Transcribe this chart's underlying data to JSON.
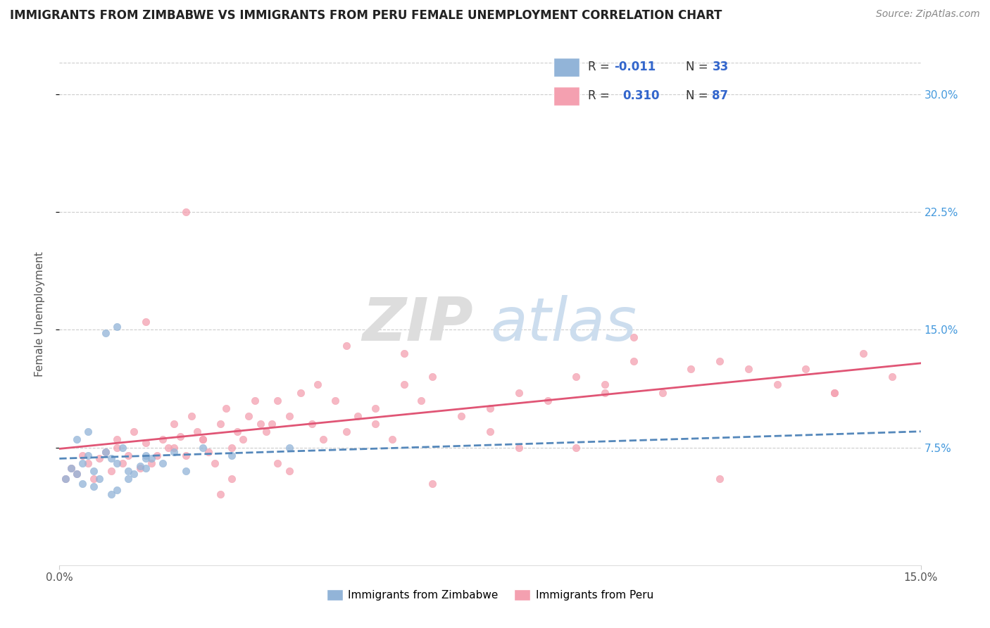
{
  "title": "IMMIGRANTS FROM ZIMBABWE VS IMMIGRANTS FROM PERU FEMALE UNEMPLOYMENT CORRELATION CHART",
  "source": "Source: ZipAtlas.com",
  "ylabel": "Female Unemployment",
  "ytick_labels": [
    "7.5%",
    "15.0%",
    "22.5%",
    "30.0%"
  ],
  "ytick_values": [
    7.5,
    15.0,
    22.5,
    30.0
  ],
  "xlim": [
    0.0,
    15.0
  ],
  "ylim": [
    0.0,
    32.0
  ],
  "legend_R_zimbabwe": "-0.011",
  "legend_N_zimbabwe": "33",
  "legend_R_peru": "0.310",
  "legend_N_peru": "87",
  "color_zimbabwe": "#92B4D8",
  "color_peru": "#F4A0B0",
  "line_color_zimbabwe": "#5588BB",
  "line_color_peru": "#E05575",
  "background_color": "#FFFFFF",
  "zimbabwe_x": [
    0.1,
    0.2,
    0.3,
    0.4,
    0.5,
    0.6,
    0.7,
    0.8,
    0.9,
    1.0,
    1.1,
    1.2,
    1.3,
    1.4,
    1.5,
    1.6,
    1.8,
    2.0,
    2.2,
    2.5,
    0.3,
    0.5,
    0.8,
    1.0,
    1.2,
    1.5,
    0.6,
    0.9,
    0.4,
    3.0,
    4.0,
    1.0,
    1.5
  ],
  "zimbabwe_y": [
    5.5,
    6.2,
    5.8,
    6.5,
    7.0,
    6.0,
    5.5,
    7.2,
    6.8,
    6.5,
    7.5,
    6.0,
    5.8,
    6.3,
    7.0,
    6.8,
    6.5,
    7.2,
    6.0,
    7.5,
    8.0,
    8.5,
    14.8,
    15.2,
    5.5,
    6.2,
    5.0,
    4.5,
    5.2,
    7.0,
    7.5,
    4.8,
    6.8
  ],
  "peru_x": [
    0.1,
    0.2,
    0.3,
    0.4,
    0.5,
    0.6,
    0.7,
    0.8,
    0.9,
    1.0,
    1.0,
    1.1,
    1.2,
    1.3,
    1.4,
    1.5,
    1.6,
    1.7,
    1.8,
    1.9,
    2.0,
    2.0,
    2.1,
    2.2,
    2.3,
    2.4,
    2.5,
    2.6,
    2.7,
    2.8,
    2.9,
    3.0,
    3.1,
    3.2,
    3.3,
    3.4,
    3.5,
    3.6,
    3.7,
    3.8,
    4.0,
    4.2,
    4.4,
    4.6,
    4.8,
    5.0,
    5.2,
    5.5,
    5.8,
    6.0,
    6.3,
    6.5,
    7.0,
    7.5,
    8.0,
    8.5,
    9.0,
    9.5,
    10.0,
    10.5,
    11.0,
    11.5,
    12.0,
    12.5,
    13.0,
    13.5,
    14.0,
    14.5,
    3.0,
    2.5,
    4.5,
    5.5,
    7.5,
    9.5,
    11.5,
    6.0,
    10.0,
    8.0,
    3.8,
    2.2,
    1.5,
    4.0,
    6.5,
    5.0,
    9.0,
    13.5,
    2.8
  ],
  "peru_y": [
    5.5,
    6.2,
    5.8,
    7.0,
    6.5,
    5.5,
    6.8,
    7.2,
    6.0,
    7.5,
    8.0,
    6.5,
    7.0,
    8.5,
    6.2,
    7.8,
    6.5,
    7.0,
    8.0,
    7.5,
    9.0,
    7.5,
    8.2,
    7.0,
    9.5,
    8.5,
    8.0,
    7.2,
    6.5,
    9.0,
    10.0,
    7.5,
    8.5,
    8.0,
    9.5,
    10.5,
    9.0,
    8.5,
    9.0,
    10.5,
    9.5,
    11.0,
    9.0,
    8.0,
    10.5,
    8.5,
    9.5,
    9.0,
    8.0,
    11.5,
    10.5,
    12.0,
    9.5,
    10.0,
    11.0,
    10.5,
    12.0,
    11.5,
    13.0,
    11.0,
    12.5,
    13.0,
    12.5,
    11.5,
    12.5,
    11.0,
    13.5,
    12.0,
    5.5,
    8.0,
    11.5,
    10.0,
    8.5,
    11.0,
    5.5,
    13.5,
    14.5,
    7.5,
    6.5,
    22.5,
    15.5,
    6.0,
    5.2,
    14.0,
    7.5,
    11.0,
    4.5
  ]
}
